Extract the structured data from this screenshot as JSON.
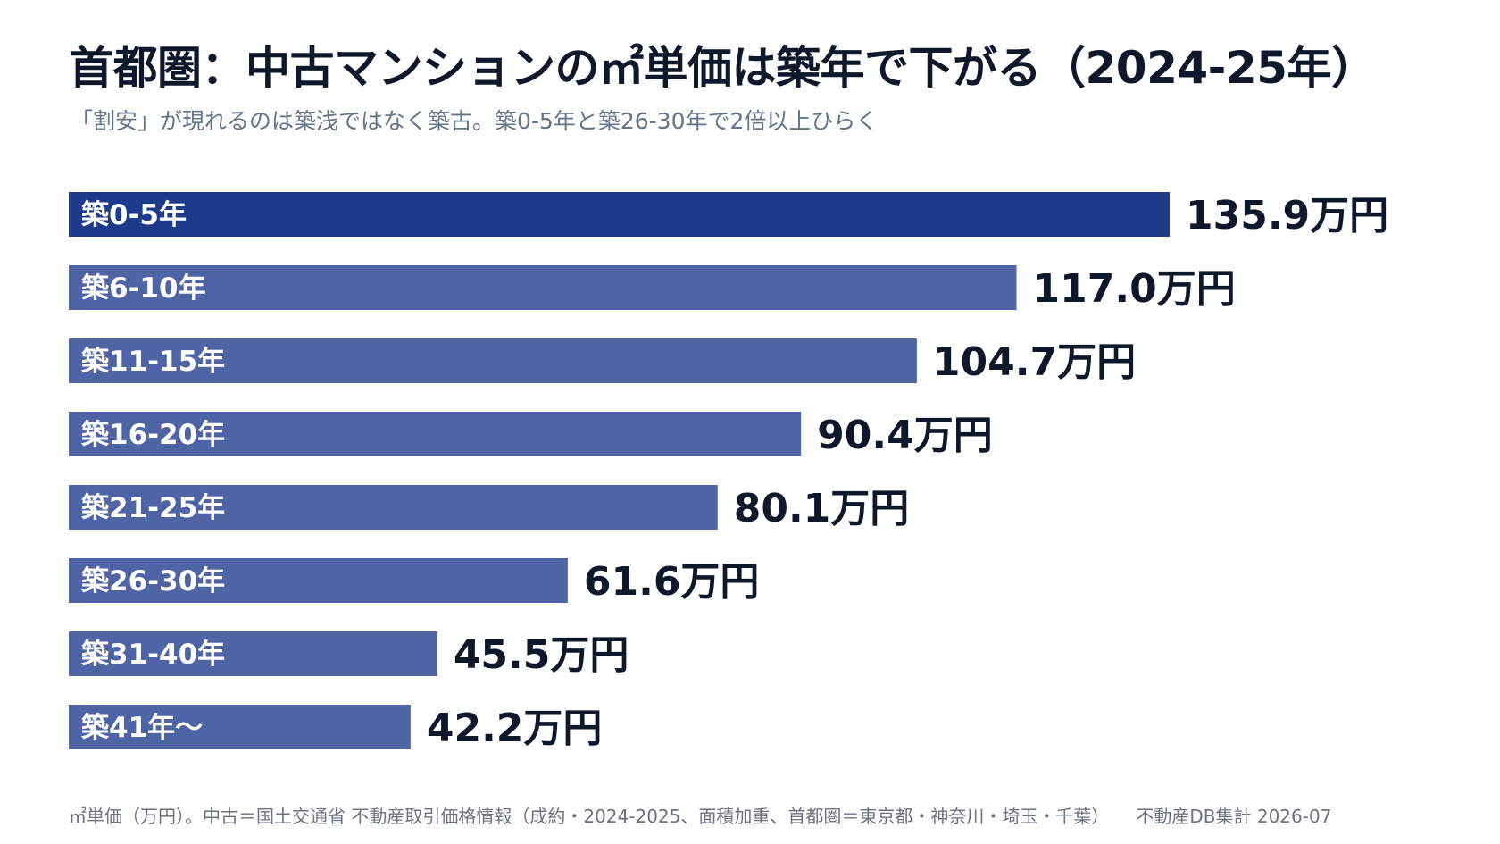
{
  "header": {
    "title": "首都圏：中古マンションの㎡単価は築年で下がる（2024-25年）",
    "subtitle": "「割安」が現れるのは築浅ではなく築古。築0-5年と築26-30年で2倍以上ひらく"
  },
  "chart_data": {
    "type": "bar",
    "orientation": "horizontal",
    "categories": [
      "築0-5年",
      "築6-10年",
      "築11-15年",
      "築16-20年",
      "築21-25年",
      "築26-30年",
      "築31-40年",
      "築41年〜"
    ],
    "values": [
      135.9,
      117.0,
      104.7,
      90.4,
      80.1,
      61.6,
      45.5,
      42.2
    ],
    "value_labels": [
      "135.9万円",
      "117.0万円",
      "104.7万円",
      "90.4万円",
      "80.1万円",
      "61.6万円",
      "45.5万円",
      "42.2万円"
    ],
    "colors": {
      "highlight": "#1e3a8a",
      "default": "#4f64a5"
    },
    "highlight_index": 0,
    "grid": false,
    "legend": "none"
  },
  "footer": {
    "note": "㎡単価（万円）。中古＝国土交通省 不動産取引価格情報（成約・2024-2025、面積加重、首都圏＝東京都・神奈川・埼玉・千葉）",
    "credit": "不動産DB集計 2026-07"
  }
}
